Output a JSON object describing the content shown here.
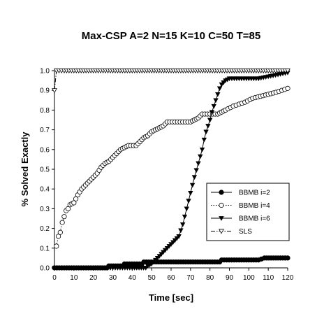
{
  "chart_data": {
    "type": "line",
    "title": "Max-CSP A=2 N=15 K=10 C=50 T=85",
    "xlabel": "Time [sec]",
    "ylabel": "% Solved Exactly",
    "xlim": [
      0,
      120
    ],
    "ylim": [
      0,
      1
    ],
    "x_ticks": [
      0,
      10,
      20,
      30,
      40,
      50,
      60,
      70,
      80,
      90,
      100,
      110,
      120
    ],
    "y_ticks": [
      0.0,
      0.1,
      0.2,
      0.3,
      0.4,
      0.5,
      0.6,
      0.7,
      0.8,
      0.9,
      1.0
    ],
    "x_tick_labels": [
      "0",
      "10",
      "20",
      "30",
      "40",
      "50",
      "60",
      "70",
      "80",
      "90",
      "100",
      "110",
      "120"
    ],
    "y_tick_labels": [
      "0.0",
      "0.1",
      "0.2",
      "0.3",
      "0.4",
      "0.5",
      "0.6",
      "0.7",
      "0.8",
      "0.9",
      "1.0"
    ],
    "grid": false,
    "legend_position": "center-right",
    "series": [
      {
        "name": "BBMB i=2",
        "marker": "filled-circle",
        "line": "solid",
        "points": [
          [
            0,
            0.0
          ],
          [
            10,
            0.0
          ],
          [
            20,
            0.0
          ],
          [
            27,
            0.0
          ],
          [
            28,
            0.01
          ],
          [
            35,
            0.01
          ],
          [
            36,
            0.02
          ],
          [
            45,
            0.02
          ],
          [
            46,
            0.03
          ],
          [
            60,
            0.03
          ],
          [
            70,
            0.03
          ],
          [
            80,
            0.03
          ],
          [
            85,
            0.03
          ],
          [
            86,
            0.04
          ],
          [
            95,
            0.04
          ],
          [
            100,
            0.04
          ],
          [
            105,
            0.04
          ],
          [
            108,
            0.05
          ],
          [
            115,
            0.05
          ],
          [
            120,
            0.05
          ]
        ]
      },
      {
        "name": "BBMB i=4",
        "marker": "open-circle",
        "line": "dotted",
        "points": [
          [
            1,
            0.11
          ],
          [
            2,
            0.16
          ],
          [
            3,
            0.18
          ],
          [
            4,
            0.23
          ],
          [
            5,
            0.26
          ],
          [
            6,
            0.29
          ],
          [
            7,
            0.3
          ],
          [
            8,
            0.32
          ],
          [
            10,
            0.33
          ],
          [
            12,
            0.37
          ],
          [
            14,
            0.4
          ],
          [
            16,
            0.42
          ],
          [
            18,
            0.44
          ],
          [
            20,
            0.46
          ],
          [
            22,
            0.48
          ],
          [
            24,
            0.51
          ],
          [
            26,
            0.53
          ],
          [
            28,
            0.54
          ],
          [
            30,
            0.56
          ],
          [
            32,
            0.58
          ],
          [
            34,
            0.6
          ],
          [
            36,
            0.61
          ],
          [
            38,
            0.62
          ],
          [
            42,
            0.62
          ],
          [
            44,
            0.64
          ],
          [
            46,
            0.66
          ],
          [
            48,
            0.67
          ],
          [
            50,
            0.69
          ],
          [
            52,
            0.7
          ],
          [
            54,
            0.71
          ],
          [
            56,
            0.72
          ],
          [
            58,
            0.74
          ],
          [
            62,
            0.74
          ],
          [
            66,
            0.74
          ],
          [
            70,
            0.74
          ],
          [
            72,
            0.75
          ],
          [
            74,
            0.76
          ],
          [
            76,
            0.78
          ],
          [
            80,
            0.78
          ],
          [
            84,
            0.78
          ],
          [
            86,
            0.79
          ],
          [
            88,
            0.8
          ],
          [
            92,
            0.82
          ],
          [
            95,
            0.83
          ],
          [
            98,
            0.84
          ],
          [
            102,
            0.86
          ],
          [
            106,
            0.87
          ],
          [
            110,
            0.88
          ],
          [
            114,
            0.89
          ],
          [
            117,
            0.9
          ],
          [
            120,
            0.91
          ]
        ]
      },
      {
        "name": "BBMB i=6",
        "marker": "filled-triangle-down",
        "line": "solid",
        "points": [
          [
            0,
            0.0
          ],
          [
            10,
            0.0
          ],
          [
            20,
            0.0
          ],
          [
            30,
            0.0
          ],
          [
            40,
            0.0
          ],
          [
            47,
            0.0
          ],
          [
            48,
            0.01
          ],
          [
            50,
            0.02
          ],
          [
            52,
            0.04
          ],
          [
            54,
            0.06
          ],
          [
            56,
            0.08
          ],
          [
            58,
            0.1
          ],
          [
            60,
            0.12
          ],
          [
            62,
            0.14
          ],
          [
            64,
            0.16
          ],
          [
            66,
            0.22
          ],
          [
            68,
            0.3
          ],
          [
            70,
            0.38
          ],
          [
            72,
            0.46
          ],
          [
            74,
            0.53
          ],
          [
            76,
            0.6
          ],
          [
            77,
            0.65
          ],
          [
            78,
            0.69
          ],
          [
            79,
            0.72
          ],
          [
            80,
            0.75
          ],
          [
            81,
            0.79
          ],
          [
            82,
            0.82
          ],
          [
            83,
            0.85
          ],
          [
            84,
            0.88
          ],
          [
            85,
            0.91
          ],
          [
            86,
            0.93
          ],
          [
            88,
            0.95
          ],
          [
            90,
            0.96
          ],
          [
            95,
            0.96
          ],
          [
            100,
            0.96
          ],
          [
            105,
            0.96
          ],
          [
            110,
            0.97
          ],
          [
            115,
            0.98
          ],
          [
            120,
            0.99
          ]
        ]
      },
      {
        "name": "SLS",
        "marker": "open-triangle-down",
        "line": "dash-dot",
        "points": [
          [
            0,
            0.9
          ],
          [
            1,
            1.0
          ],
          [
            5,
            1.0
          ],
          [
            10,
            1.0
          ],
          [
            20,
            1.0
          ],
          [
            30,
            1.0
          ],
          [
            40,
            1.0
          ],
          [
            50,
            1.0
          ],
          [
            60,
            1.0
          ],
          [
            70,
            1.0
          ],
          [
            80,
            1.0
          ],
          [
            90,
            1.0
          ],
          [
            100,
            1.0
          ],
          [
            110,
            1.0
          ],
          [
            120,
            1.0
          ]
        ]
      }
    ]
  }
}
